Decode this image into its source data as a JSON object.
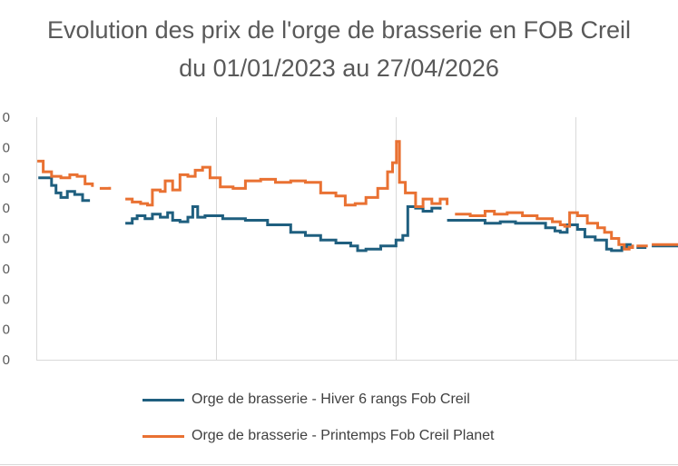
{
  "chart_data": {
    "type": "line",
    "title": "Evolution des prix de l'orge de brasserie en FOB Creil",
    "subtitle": "du 01/01/2023 au 27/04/2026",
    "xlabel": "",
    "ylabel": "",
    "x_range": [
      "2023-01-01",
      "2026-04-27"
    ],
    "y_tick_labels": [
      "0",
      "0",
      "0",
      "0",
      "0",
      "0",
      "0",
      "0",
      "0"
    ],
    "ylim": [
      0,
      8
    ],
    "grid": {
      "vertical": true,
      "horizontal": false
    },
    "legend_position": "bottom",
    "series": [
      {
        "name": "Orge de brasserie - Hiver 6 rangs Fob Creil",
        "color": "#1F5F7F",
        "points": [
          [
            "2023-01-05",
            6.0
          ],
          [
            "2023-01-20",
            6.0
          ],
          [
            "2023-02-01",
            5.75
          ],
          [
            "2023-02-10",
            5.5
          ],
          [
            "2023-02-20",
            5.35
          ],
          [
            "2023-03-05",
            5.55
          ],
          [
            "2023-03-20",
            5.45
          ],
          [
            "2023-04-05",
            5.25
          ],
          [
            "2023-04-20",
            5.25
          ],
          null,
          [
            "2023-07-01",
            4.5
          ],
          [
            "2023-07-15",
            4.65
          ],
          [
            "2023-07-25",
            4.75
          ],
          [
            "2023-08-10",
            4.65
          ],
          [
            "2023-08-25",
            4.8
          ],
          [
            "2023-09-10",
            4.7
          ],
          [
            "2023-09-25",
            4.85
          ],
          [
            "2023-10-05",
            4.6
          ],
          [
            "2023-10-20",
            4.55
          ],
          [
            "2023-11-05",
            4.7
          ],
          [
            "2023-11-15",
            5.05
          ],
          [
            "2023-11-25",
            4.7
          ],
          [
            "2023-12-10",
            4.75
          ],
          [
            "2024-01-15",
            4.65
          ],
          [
            "2024-03-01",
            4.6
          ],
          [
            "2024-04-15",
            4.45
          ],
          [
            "2024-06-01",
            4.2
          ],
          [
            "2024-07-01",
            4.1
          ],
          [
            "2024-08-01",
            3.95
          ],
          [
            "2024-09-01",
            3.85
          ],
          [
            "2024-10-01",
            3.75
          ],
          [
            "2024-10-15",
            3.6
          ],
          [
            "2024-11-01",
            3.65
          ],
          [
            "2024-12-01",
            3.75
          ],
          [
            "2025-01-01",
            3.95
          ],
          [
            "2025-01-15",
            4.1
          ],
          [
            "2025-01-25",
            5.05
          ],
          [
            "2025-02-10",
            5.0
          ],
          [
            "2025-02-25",
            4.9
          ],
          [
            "2025-03-15",
            5.0
          ],
          [
            "2025-04-01",
            4.95
          ],
          null,
          [
            "2025-04-15",
            4.6
          ],
          [
            "2025-06-01",
            4.6
          ],
          [
            "2025-07-01",
            4.5
          ],
          [
            "2025-08-01",
            4.55
          ],
          [
            "2025-09-01",
            4.5
          ],
          [
            "2025-10-01",
            4.5
          ],
          [
            "2025-11-01",
            4.35
          ],
          [
            "2025-11-20",
            4.25
          ],
          [
            "2025-12-01",
            4.2
          ],
          [
            "2025-12-15",
            4.45
          ],
          [
            "2026-01-05",
            4.3
          ],
          [
            "2026-01-20",
            4.05
          ],
          [
            "2026-02-10",
            3.95
          ],
          [
            "2026-02-25",
            3.95
          ],
          [
            "2026-03-05",
            3.65
          ],
          [
            "2026-03-15",
            3.6
          ],
          [
            "2026-03-25",
            3.6
          ],
          [
            "2026-04-05",
            3.7
          ],
          [
            "2026-04-15",
            3.8
          ],
          [
            "2026-04-25",
            3.8
          ],
          null,
          [
            "2026-05-05",
            3.7
          ],
          [
            "2026-05-25",
            3.7
          ],
          null,
          [
            "2026-06-05",
            3.75
          ],
          [
            "2026-07-05",
            3.75
          ],
          [
            "2026-08-05",
            3.7
          ],
          [
            "2026-08-25",
            3.7
          ]
        ]
      },
      {
        "name": "Orge de brasserie - Printemps Fob Creil Planet",
        "color": "#E97132",
        "points": [
          [
            "2023-01-03",
            6.55
          ],
          [
            "2023-01-15",
            6.2
          ],
          [
            "2023-02-01",
            6.05
          ],
          [
            "2023-02-20",
            6.0
          ],
          [
            "2023-03-10",
            6.1
          ],
          [
            "2023-03-25",
            6.05
          ],
          [
            "2023-04-10",
            5.8
          ],
          [
            "2023-04-25",
            5.7
          ],
          null,
          [
            "2023-05-10",
            5.65
          ],
          [
            "2023-05-30",
            5.7
          ],
          null,
          [
            "2023-07-01",
            5.3
          ],
          [
            "2023-07-15",
            5.2
          ],
          [
            "2023-08-01",
            5.15
          ],
          [
            "2023-08-15",
            5.1
          ],
          [
            "2023-08-25",
            5.6
          ],
          [
            "2023-09-10",
            5.55
          ],
          [
            "2023-09-20",
            5.9
          ],
          [
            "2023-10-05",
            5.6
          ],
          [
            "2023-10-20",
            6.1
          ],
          [
            "2023-11-05",
            6.05
          ],
          [
            "2023-11-20",
            6.25
          ],
          [
            "2023-12-05",
            6.35
          ],
          [
            "2023-12-20",
            6.0
          ],
          [
            "2024-01-10",
            5.7
          ],
          [
            "2024-02-05",
            5.65
          ],
          [
            "2024-03-01",
            5.9
          ],
          [
            "2024-04-01",
            5.95
          ],
          [
            "2024-05-01",
            5.85
          ],
          [
            "2024-06-01",
            5.9
          ],
          [
            "2024-07-01",
            5.85
          ],
          [
            "2024-08-01",
            5.5
          ],
          [
            "2024-09-01",
            5.4
          ],
          [
            "2024-09-20",
            5.1
          ],
          [
            "2024-10-10",
            5.15
          ],
          [
            "2024-11-01",
            5.35
          ],
          [
            "2024-11-25",
            5.65
          ],
          [
            "2024-12-15",
            6.2
          ],
          [
            "2024-12-25",
            6.5
          ],
          [
            "2025-01-02",
            7.2
          ],
          [
            "2025-01-08",
            5.85
          ],
          [
            "2025-01-20",
            5.5
          ],
          [
            "2025-02-10",
            5.05
          ],
          [
            "2025-02-25",
            5.3
          ],
          [
            "2025-03-15",
            5.15
          ],
          [
            "2025-04-01",
            5.3
          ],
          [
            "2025-04-15",
            5.1
          ],
          null,
          [
            "2025-05-01",
            4.8
          ],
          [
            "2025-06-01",
            4.75
          ],
          [
            "2025-07-01",
            4.9
          ],
          [
            "2025-07-20",
            4.8
          ],
          [
            "2025-08-15",
            4.85
          ],
          [
            "2025-09-15",
            4.75
          ],
          [
            "2025-10-15",
            4.65
          ],
          [
            "2025-11-15",
            4.55
          ],
          [
            "2025-12-01",
            4.45
          ],
          [
            "2025-12-10",
            4.4
          ],
          [
            "2025-12-20",
            4.85
          ],
          [
            "2026-01-05",
            4.75
          ],
          [
            "2026-01-25",
            4.5
          ],
          [
            "2026-02-15",
            4.35
          ],
          [
            "2026-03-01",
            4.2
          ],
          [
            "2026-03-15",
            4.0
          ],
          [
            "2026-03-30",
            3.8
          ],
          [
            "2026-04-10",
            3.65
          ],
          [
            "2026-04-20",
            3.7
          ],
          [
            "2026-04-27",
            3.8
          ],
          null,
          [
            "2026-05-05",
            3.75
          ],
          [
            "2026-05-25",
            3.8
          ],
          null,
          [
            "2026-06-05",
            3.8
          ],
          [
            "2026-07-05",
            3.8
          ],
          [
            "2026-08-05",
            3.75
          ],
          [
            "2026-08-25",
            3.75
          ]
        ]
      }
    ]
  }
}
